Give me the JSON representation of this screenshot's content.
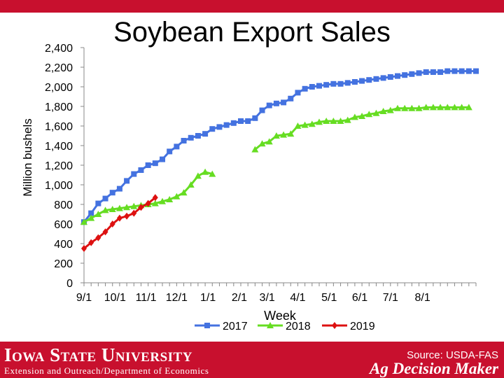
{
  "chart_data": {
    "type": "line",
    "title": "Soybean Export Sales",
    "xlabel": "Week",
    "ylabel": "Million bushels",
    "ylim": [
      0,
      2400
    ],
    "y_ticks": [
      "0",
      "200",
      "400",
      "600",
      "800",
      "1,000",
      "1,200",
      "1,400",
      "1,600",
      "1,800",
      "2,000",
      "2,200",
      "2,400"
    ],
    "x_tick_labels": [
      "9/1",
      "10/1",
      "11/1",
      "12/1",
      "1/1",
      "2/1",
      "3/1",
      "4/1",
      "5/1",
      "6/1",
      "7/1",
      "8/1"
    ],
    "grid": false,
    "legend_position": "bottom",
    "series": [
      {
        "name": "2017",
        "color": "#4472e0",
        "marker": "square",
        "values": [
          620,
          710,
          810,
          860,
          920,
          960,
          1040,
          1110,
          1150,
          1200,
          1220,
          1260,
          1340,
          1390,
          1450,
          1480,
          1500,
          1520,
          1570,
          1590,
          1610,
          1630,
          1650,
          1650,
          1680,
          1760,
          1810,
          1830,
          1840,
          1880,
          1940,
          1980,
          2000,
          2010,
          2020,
          2030,
          2030,
          2040,
          2050,
          2060,
          2070,
          2080,
          2090,
          2100,
          2110,
          2120,
          2130,
          2140,
          2150,
          2150,
          2150,
          2160,
          2160,
          2160,
          2160,
          2160
        ]
      },
      {
        "name": "2018",
        "color": "#66dd22",
        "marker": "triangle",
        "segments": [
          [
            620,
            660,
            700,
            740,
            750,
            760,
            770,
            780,
            790,
            800,
            810,
            830,
            850,
            880,
            920,
            1000,
            1090,
            1130,
            1110
          ],
          [
            1360,
            1420,
            1440,
            1500,
            1510,
            1520,
            1600,
            1610,
            1620,
            1640,
            1650,
            1650,
            1650,
            1660,
            1690,
            1700,
            1720,
            1730,
            1750,
            1760,
            1780,
            1780,
            1780,
            1780,
            1790,
            1790,
            1790,
            1790,
            1790,
            1790,
            1790
          ]
        ]
      },
      {
        "name": "2019",
        "color": "#dd1111",
        "marker": "diamond",
        "values": [
          350,
          410,
          460,
          520,
          600,
          660,
          680,
          710,
          770,
          810,
          870
        ]
      }
    ],
    "source": "Source: USDA-FAS"
  },
  "footer": {
    "university": "Iowa State University",
    "department": "Extension and Outreach/Department of Economics",
    "source": "Source: USDA-FAS",
    "brand": "Ag Decision Maker"
  },
  "colors": {
    "brand_red": "#c8102e"
  }
}
